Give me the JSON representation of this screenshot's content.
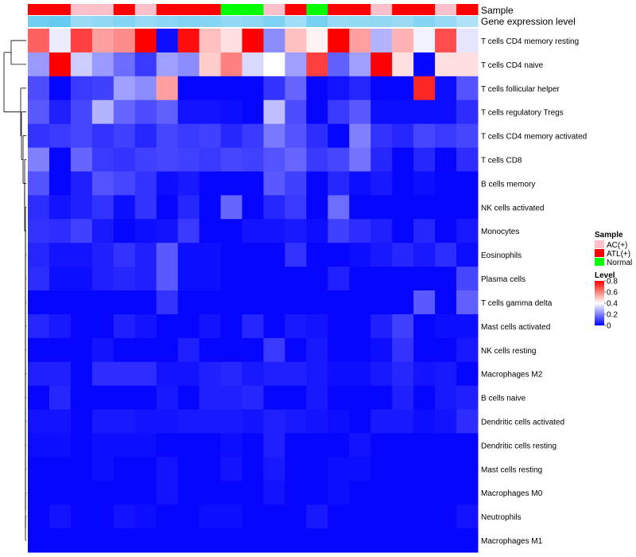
{
  "chart_data": {
    "type": "heatmap",
    "title": "",
    "annotation_rows": [
      {
        "label": "Sample"
      },
      {
        "label": "Gene expression level"
      }
    ],
    "sample_groups": [
      "ATL(+)",
      "ATL(+)",
      "AC(+)",
      "AC(+)",
      "ATL(+)",
      "AC(+)",
      "ATL(+)",
      "ATL(+)",
      "ATL(+)",
      "Normal",
      "Normal",
      "AC(+)",
      "ATL(+)",
      "Normal",
      "ATL(+)",
      "ATL(+)",
      "AC(+)",
      "ATL(+)",
      "ATL(+)",
      "AC(+)",
      "ATL(+)"
    ],
    "expression_level": [
      0.85,
      0.92,
      0.55,
      0.62,
      0.7,
      0.58,
      0.66,
      0.72,
      0.68,
      0.6,
      0.63,
      0.75,
      0.5,
      0.8,
      0.57,
      0.6,
      0.62,
      0.55,
      0.7,
      0.58,
      0.4
    ],
    "rows": [
      "T cells CD4 memory resting",
      "T cells CD4 naive",
      "T cells follicular helper",
      "T cells regulatory  Tregs",
      "T cells CD4 memory activated",
      "T cells CD8",
      "B cells memory",
      "NK cells activated",
      "Monocytes",
      "Eosinophils",
      "Plasma cells",
      "T cells gamma delta",
      "Mast cells activated",
      "NK cells resting",
      "Macrophages M2",
      "B cells naive",
      "Dendritic cells activated",
      "Dendritic cells resting",
      "Mast cells resting",
      "Macrophages M0",
      "Neutrophils",
      "Macrophages M1"
    ],
    "values": [
      [
        0.65,
        0.37,
        0.7,
        0.55,
        0.58,
        0.8,
        0.02,
        0.78,
        0.5,
        0.45,
        0.8,
        0.22,
        0.5,
        0.42,
        0.8,
        0.55,
        0.28,
        0.52,
        0.38,
        0.68,
        0.36
      ],
      [
        0.24,
        0.8,
        0.32,
        0.24,
        0.17,
        0.09,
        0.25,
        0.22,
        0.48,
        0.6,
        0.34,
        0.4,
        0.25,
        0.7,
        0.15,
        0.25,
        0.8,
        0.45,
        0.01,
        0.45,
        0.45
      ],
      [
        0.12,
        0.01,
        0.09,
        0.1,
        0.25,
        0.22,
        0.55,
        0.01,
        0.01,
        0.01,
        0.01,
        0.08,
        0.16,
        0.01,
        0.03,
        0.06,
        0.01,
        0.01,
        0.74,
        0.02,
        0.13
      ],
      [
        0.14,
        0.05,
        0.11,
        0.28,
        0.16,
        0.12,
        0.15,
        0.03,
        0.03,
        0.02,
        0.01,
        0.3,
        0.12,
        0.01,
        0.09,
        0.14,
        0.02,
        0.02,
        0.02,
        0.02,
        0.07
      ],
      [
        0.08,
        0.09,
        0.11,
        0.08,
        0.1,
        0.06,
        0.11,
        0.09,
        0.1,
        0.06,
        0.09,
        0.19,
        0.13,
        0.07,
        0.01,
        0.2,
        0.08,
        0.06,
        0.11,
        0.09,
        0.11
      ],
      [
        0.2,
        0.01,
        0.16,
        0.09,
        0.08,
        0.1,
        0.11,
        0.1,
        0.09,
        0.11,
        0.1,
        0.13,
        0.16,
        0.09,
        0.11,
        0.18,
        0.06,
        0.01,
        0.06,
        0.01,
        0.07
      ],
      [
        0.13,
        0.01,
        0.05,
        0.13,
        0.11,
        0.08,
        0.02,
        0.04,
        0.01,
        0.01,
        0.01,
        0.14,
        0.1,
        0.01,
        0.06,
        0.02,
        0.04,
        0.01,
        0.02,
        0.01,
        0.01
      ],
      [
        0.07,
        0.03,
        0.05,
        0.08,
        0.02,
        0.08,
        0.01,
        0.06,
        0.01,
        0.16,
        0.01,
        0.06,
        0.09,
        0.01,
        0.17,
        0.01,
        0.01,
        0.01,
        0.01,
        0.01,
        0.01
      ],
      [
        0.08,
        0.07,
        0.1,
        0.04,
        0.01,
        0.02,
        0.03,
        0.09,
        0.01,
        0.01,
        0.03,
        0.03,
        0.04,
        0.02,
        0.1,
        0.07,
        0.05,
        0.01,
        0.06,
        0.01,
        0.04
      ],
      [
        0.06,
        0.03,
        0.03,
        0.05,
        0.08,
        0.05,
        0.14,
        0.02,
        0.02,
        0.01,
        0.01,
        0.01,
        0.08,
        0.01,
        0.01,
        0.02,
        0.04,
        0.06,
        0.04,
        0.07,
        0.02
      ],
      [
        0.07,
        0.02,
        0.02,
        0.05,
        0.06,
        0.05,
        0.14,
        0.02,
        0.02,
        0.01,
        0.01,
        0.01,
        0.01,
        0.01,
        0.05,
        0.01,
        0.01,
        0.01,
        0.01,
        0.01,
        0.11
      ],
      [
        0.01,
        0.01,
        0.01,
        0.01,
        0.01,
        0.01,
        0.08,
        0.01,
        0.01,
        0.01,
        0.01,
        0.01,
        0.01,
        0.01,
        0.01,
        0.01,
        0.01,
        0.01,
        0.14,
        0.01,
        0.15
      ],
      [
        0.06,
        0.04,
        0.01,
        0.01,
        0.05,
        0.03,
        0.01,
        0.01,
        0.03,
        0.01,
        0.06,
        0.01,
        0.04,
        0.03,
        0.01,
        0.01,
        0.05,
        0.1,
        0.01,
        0.02,
        0.02
      ],
      [
        0.01,
        0.01,
        0.01,
        0.03,
        0.01,
        0.01,
        0.01,
        0.05,
        0.01,
        0.01,
        0.01,
        0.09,
        0.01,
        0.04,
        0.01,
        0.01,
        0.02,
        0.08,
        0.01,
        0.01,
        0.04
      ],
      [
        0.05,
        0.05,
        0.01,
        0.07,
        0.07,
        0.07,
        0.03,
        0.03,
        0.05,
        0.06,
        0.04,
        0.05,
        0.05,
        0.04,
        0.02,
        0.02,
        0.04,
        0.06,
        0.03,
        0.04,
        0.01
      ],
      [
        0.01,
        0.06,
        0.01,
        0.01,
        0.01,
        0.01,
        0.04,
        0.01,
        0.05,
        0.05,
        0.06,
        0.01,
        0.01,
        0.04,
        0.01,
        0.01,
        0.01,
        0.05,
        0.01,
        0.04,
        0.05
      ],
      [
        0.03,
        0.03,
        0.01,
        0.04,
        0.04,
        0.03,
        0.03,
        0.04,
        0.04,
        0.04,
        0.03,
        0.05,
        0.04,
        0.03,
        0.02,
        0.01,
        0.04,
        0.04,
        0.02,
        0.03,
        0.07
      ],
      [
        0.02,
        0.02,
        0.01,
        0.02,
        0.02,
        0.02,
        0.01,
        0.01,
        0.01,
        0.02,
        0.01,
        0.05,
        0.01,
        0.01,
        0.01,
        0.03,
        0.01,
        0.01,
        0.01,
        0.01,
        0.01
      ],
      [
        0.01,
        0.01,
        0.01,
        0.02,
        0.01,
        0.01,
        0.03,
        0.01,
        0.01,
        0.03,
        0.01,
        0.04,
        0.01,
        0.01,
        0.02,
        0.02,
        0.01,
        0.01,
        0.01,
        0.01,
        0.01
      ],
      [
        0.01,
        0.01,
        0.01,
        0.01,
        0.01,
        0.01,
        0.03,
        0.01,
        0.01,
        0.01,
        0.01,
        0.03,
        0.01,
        0.01,
        0.02,
        0.01,
        0.01,
        0.01,
        0.01,
        0.01,
        0.01
      ],
      [
        0.01,
        0.03,
        0.01,
        0.01,
        0.03,
        0.02,
        0.01,
        0.01,
        0.02,
        0.02,
        0.01,
        0.01,
        0.01,
        0.04,
        0.01,
        0.01,
        0.01,
        0.01,
        0.01,
        0.01,
        0.03
      ],
      [
        0.01,
        0.01,
        0.01,
        0.01,
        0.01,
        0.01,
        0.01,
        0.01,
        0.01,
        0.01,
        0.01,
        0.01,
        0.01,
        0.01,
        0.01,
        0.01,
        0.01,
        0.01,
        0.01,
        0.01,
        0.01
      ]
    ],
    "sample_legend": {
      "title": "Sample",
      "entries": [
        {
          "label": "AC(+)",
          "color": "#ffc0cb"
        },
        {
          "label": "ATL(+)",
          "color": "#ff0000"
        },
        {
          "label": "Normal",
          "color": "#00ff00"
        }
      ]
    },
    "level_legend": {
      "title": "Level",
      "ticks": [
        "0.8",
        "0.6",
        "0.4",
        "0.2",
        "0"
      ],
      "tick_values": [
        0.8,
        0.6,
        0.4,
        0.2,
        0
      ],
      "range": [
        0,
        0.8
      ]
    },
    "color_scale": {
      "low": "#0000ff",
      "mid": "#ffffff",
      "high": "#ff0000",
      "mid_value": 0.4
    },
    "expression_colors": {
      "low": "#e7f3fb",
      "high": "#5ac7f0"
    },
    "row_dendrogram": "hierarchical clustering, left side",
    "legend_position": "right"
  }
}
